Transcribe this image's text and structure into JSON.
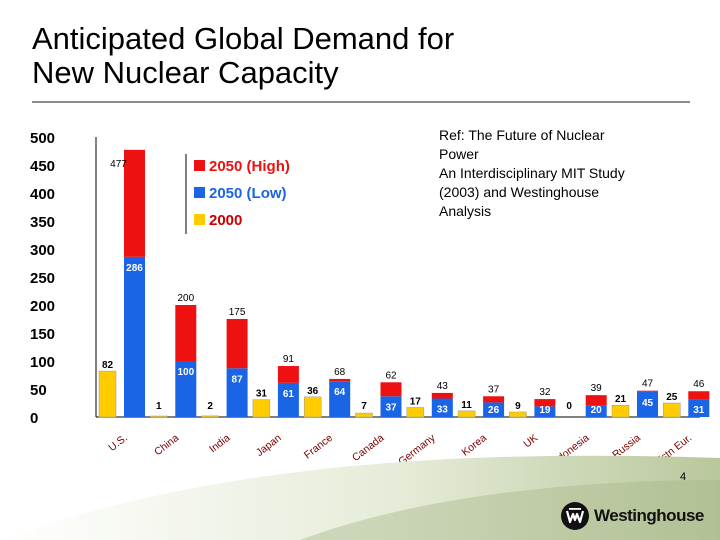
{
  "page": {
    "title_line1": "Anticipated Global Demand for",
    "title_line2": "New Nuclear Capacity",
    "ref_lines": [
      "Ref: The Future of Nuclear",
      "Power",
      "An Interdisciplinary MIT Study",
      "(2003) and Westinghouse",
      "Analysis"
    ],
    "page_number": "4",
    "logo_text": "Westinghouse"
  },
  "chart_data": {
    "type": "bar",
    "title": "",
    "xlabel": "",
    "ylabel": "",
    "ylim": [
      0,
      500
    ],
    "yticks": [
      0,
      50,
      100,
      150,
      200,
      250,
      300,
      350,
      400,
      450,
      500
    ],
    "grid": false,
    "legend_position": "top-left",
    "categories": [
      "U.S.",
      "China",
      "India",
      "Japan",
      "France",
      "Canada",
      "Germany",
      "Korea",
      "UK",
      "Indonesia",
      "Russia",
      "Cntrl & Estn Eur."
    ],
    "series": [
      {
        "name": "2050 (High)",
        "color": "#ee1111",
        "values": [
          477,
          200,
          175,
          91,
          68,
          62,
          43,
          37,
          32,
          39,
          47,
          46
        ]
      },
      {
        "name": "2050 (Low)",
        "color": "#1a64e6",
        "values": [
          286,
          100,
          87,
          61,
          64,
          37,
          33,
          26,
          19,
          20,
          45,
          31
        ]
      },
      {
        "name": "2000",
        "color": "#ffcc00",
        "values": [
          82,
          1,
          2,
          31,
          36,
          7,
          17,
          11,
          9,
          0,
          21,
          25
        ]
      }
    ]
  }
}
